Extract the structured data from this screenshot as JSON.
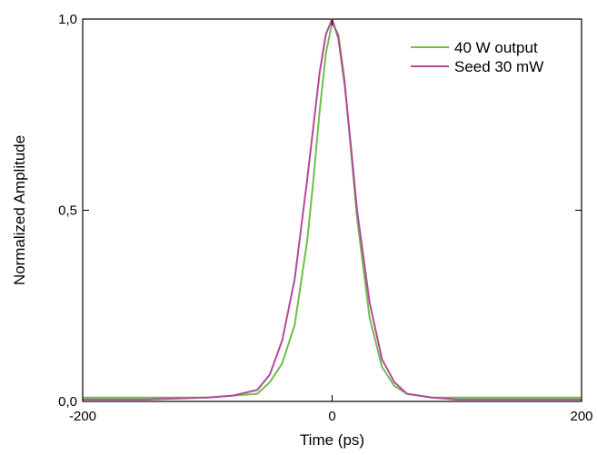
{
  "chart_data": {
    "type": "line",
    "title": "",
    "xlabel": "Time (ps)",
    "ylabel": "Normalized Amplitude",
    "xlim": [
      -200,
      200
    ],
    "ylim": [
      0,
      1
    ],
    "x_ticks": [
      -200,
      0,
      200
    ],
    "x_tick_labels": [
      "-200",
      "0",
      "200"
    ],
    "y_ticks": [
      0,
      0.5,
      1
    ],
    "y_tick_labels": [
      "0,0",
      "0,5",
      "1,0"
    ],
    "grid": false,
    "legend_position": "top-right",
    "series": [
      {
        "name": "40 W output",
        "color": "#6cc04a",
        "x": [
          -200,
          -150,
          -100,
          -80,
          -60,
          -50,
          -40,
          -30,
          -20,
          -15,
          -10,
          -5,
          0,
          5,
          10,
          15,
          20,
          30,
          40,
          50,
          60,
          80,
          100,
          150,
          200
        ],
        "y": [
          0.01,
          0.01,
          0.01,
          0.015,
          0.02,
          0.05,
          0.1,
          0.2,
          0.42,
          0.58,
          0.76,
          0.91,
          0.99,
          0.96,
          0.84,
          0.66,
          0.48,
          0.22,
          0.09,
          0.04,
          0.02,
          0.01,
          0.01,
          0.01,
          0.01
        ]
      },
      {
        "name": "Seed 30 mW",
        "color": "#b4489c",
        "x": [
          -200,
          -150,
          -100,
          -80,
          -60,
          -50,
          -40,
          -30,
          -20,
          -15,
          -10,
          -5,
          0,
          5,
          10,
          15,
          20,
          30,
          40,
          50,
          60,
          80,
          100,
          150,
          200
        ],
        "y": [
          0.005,
          0.005,
          0.01,
          0.015,
          0.03,
          0.07,
          0.16,
          0.32,
          0.58,
          0.72,
          0.86,
          0.96,
          1.0,
          0.95,
          0.83,
          0.67,
          0.5,
          0.26,
          0.11,
          0.05,
          0.02,
          0.01,
          0.005,
          0.005,
          0.005
        ]
      }
    ]
  }
}
